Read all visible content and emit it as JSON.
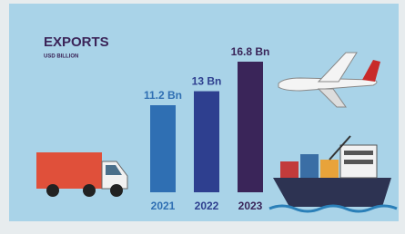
{
  "chart_data": {
    "type": "bar",
    "title": "EXPORTS",
    "subtitle": "USD BILLION",
    "categories": [
      "2021",
      "2022",
      "2023"
    ],
    "values": [
      11.2,
      13,
      16.8
    ],
    "value_labels": [
      "11.2 Bn",
      "13 Bn",
      "16.8 Bn"
    ],
    "colors": [
      "#2f6fb3",
      "#2e3f8f",
      "#3a2559"
    ]
  }
}
